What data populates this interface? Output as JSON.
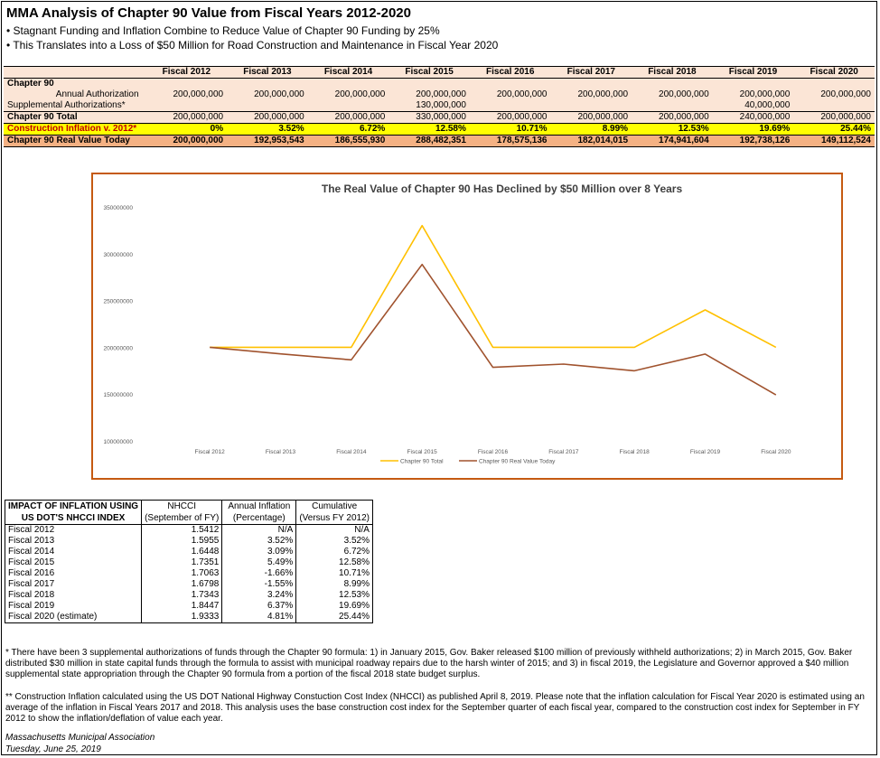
{
  "header": {
    "title": "MMA Analysis of Chapter 90 Value from Fiscal Years 2012-2020",
    "bullets": [
      "• Stagnant Funding and Inflation Combine to Reduce Value of Chapter 90 Funding by 25%",
      "• This Translates into a Loss of $50 Million for Road Construction and Maintenance in Fiscal Year 2020"
    ]
  },
  "main_table": {
    "columns": [
      "Fiscal 2012",
      "Fiscal 2013",
      "Fiscal 2014",
      "Fiscal 2015",
      "Fiscal 2016",
      "Fiscal 2017",
      "Fiscal 2018",
      "Fiscal 2019",
      "Fiscal 2020"
    ],
    "section_label": "Chapter 90",
    "annual_label": "Annual Authorization",
    "annual": [
      "200,000,000",
      "200,000,000",
      "200,000,000",
      "200,000,000",
      "200,000,000",
      "200,000,000",
      "200,000,000",
      "200,000,000",
      "200,000,000"
    ],
    "supp_label": "Supplemental Authorizations*",
    "supp": [
      "",
      "",
      "",
      "130,000,000",
      "",
      "",
      "",
      "40,000,000",
      ""
    ],
    "total_label": "Chapter 90 Total",
    "total": [
      "200,000,000",
      "200,000,000",
      "200,000,000",
      "330,000,000",
      "200,000,000",
      "200,000,000",
      "200,000,000",
      "240,000,000",
      "200,000,000"
    ],
    "inflation_label": "Construction Inflation v. 2012*",
    "inflation": [
      "0%",
      "3.52%",
      "6.72%",
      "12.58%",
      "10.71%",
      "8.99%",
      "12.53%",
      "19.69%",
      "25.44%"
    ],
    "real_label": "Chapter 90 Real Value Today",
    "real": [
      "200,000,000",
      "192,953,543",
      "186,555,930",
      "288,482,351",
      "178,575,136",
      "182,014,015",
      "174,941,604",
      "192,738,126",
      "149,112,524"
    ]
  },
  "chart_data": {
    "type": "line",
    "title": "The Real Value of Chapter 90 Has Declined by $50 Million over 8 Years",
    "categories": [
      "Fiscal 2012",
      "Fiscal 2013",
      "Fiscal 2014",
      "Fiscal 2015",
      "Fiscal 2016",
      "Fiscal 2017",
      "Fiscal 2018",
      "Fiscal 2019",
      "Fiscal 2020"
    ],
    "series": [
      {
        "name": "Chapter 90 Total",
        "color": "#ffc000",
        "values": [
          200000000,
          200000000,
          200000000,
          330000000,
          200000000,
          200000000,
          200000000,
          240000000,
          200000000
        ]
      },
      {
        "name": "Chapter 90 Real Value Today",
        "color": "#a0522d",
        "values": [
          200000000,
          192953543,
          186555930,
          288482351,
          178575136,
          182014015,
          174941604,
          192738126,
          149112524
        ]
      }
    ],
    "ylim": [
      100000000,
      350000000
    ],
    "yticks": [
      100000000,
      150000000,
      200000000,
      250000000,
      300000000,
      350000000
    ],
    "ytick_labels": [
      "100000000",
      "150000000",
      "200000000",
      "250000000",
      "300000000",
      "350000000"
    ],
    "legend": "bottom",
    "grid": false
  },
  "nhcci_table": {
    "headers": [
      [
        "IMPACT OF INFLATION USING",
        "US DOT'S NHCCI INDEX"
      ],
      [
        "NHCCI",
        "(September of FY)"
      ],
      [
        "Annual Inflation",
        "(Percentage)"
      ],
      [
        "Cumulative",
        "(Versus FY 2012)"
      ]
    ],
    "rows": [
      [
        "Fiscal 2012",
        "1.5412",
        "N/A",
        "N/A"
      ],
      [
        "Fiscal 2013",
        "1.5955",
        "3.52%",
        "3.52%"
      ],
      [
        "Fiscal 2014",
        "1.6448",
        "3.09%",
        "6.72%"
      ],
      [
        "Fiscal 2015",
        "1.7351",
        "5.49%",
        "12.58%"
      ],
      [
        "Fiscal 2016",
        "1.7063",
        "-1.66%",
        "10.71%"
      ],
      [
        "Fiscal 2017",
        "1.6798",
        "-1.55%",
        "8.99%"
      ],
      [
        "Fiscal 2018",
        "1.7343",
        "3.24%",
        "12.53%"
      ],
      [
        "Fiscal 2019",
        "1.8447",
        "6.37%",
        "19.69%"
      ],
      [
        "Fiscal 2020 (estimate)",
        "1.9333",
        "4.81%",
        "25.44%"
      ]
    ]
  },
  "notes": {
    "note1": "* There have been 3 supplemental authorizations of funds through the Chapter 90 formula: 1) in January 2015, Gov. Baker released $100 million of previously withheld authorizations; 2) in March 2015, Gov. Baker distributed $30 million in state capital funds through the formula to assist with municipal roadway repairs due to the harsh winter of 2015; and 3) in fiscal 2019, the Legislature and Governor approved a $40 million supplemental state appropriation through the Chapter 90 formula from a portion of the fiscal 2018 state budget surplus.",
    "note2": "** Construction Inflation calculated using the US DOT National Highway Constuction Cost Index (NHCCI) as published April 8, 2019.  Please note that the inflation calculation for Fiscal Year 2020 is estimated using an average of the inflation in Fiscal Years 2017 and 2018.  This analysis uses the base construction cost index for the September quarter of each fiscal year, compared to the construction cost index for September in FY 2012 to show the inflation/deflation of value each year."
  },
  "footer": {
    "org": "Massachusetts Municipal Association",
    "date": "Tuesday, June 25, 2019"
  }
}
